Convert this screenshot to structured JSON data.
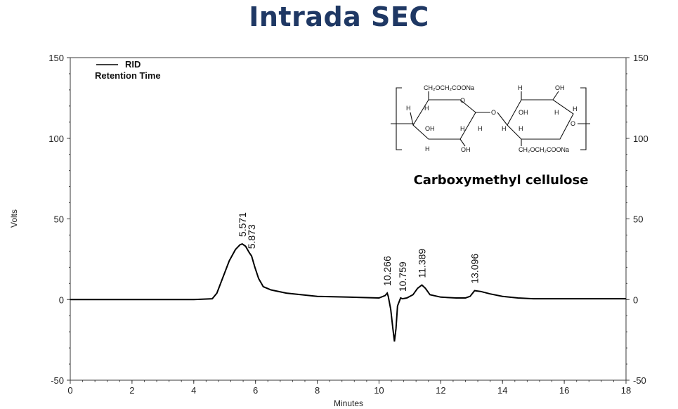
{
  "title": "Intrada SEC",
  "chart_data": {
    "type": "line",
    "title": "Intrada SEC",
    "xlabel": "Minutes",
    "ylabel": "Volts",
    "xlim": [
      0,
      18
    ],
    "ylim": [
      -50,
      150
    ],
    "x_ticks": [
      "0",
      "2",
      "4",
      "6",
      "8",
      "10",
      "12",
      "14",
      "16",
      "18"
    ],
    "y_ticks": [
      "150",
      "100",
      "50",
      "0",
      "-50"
    ],
    "y2_ticks": [
      "150",
      "100",
      "50",
      "0",
      "-50"
    ],
    "legend": [
      "RID",
      "Retention Time"
    ],
    "series": [
      {
        "name": "RID",
        "x": [
          0,
          2,
          4,
          4.6,
          4.75,
          4.95,
          5.15,
          5.35,
          5.5,
          5.571,
          5.68,
          5.8,
          5.873,
          5.98,
          6.1,
          6.25,
          6.5,
          7,
          8,
          9,
          10,
          10.2,
          10.266,
          10.3,
          10.38,
          10.45,
          10.5,
          10.55,
          10.6,
          10.7,
          10.759,
          10.9,
          11.1,
          11.25,
          11.389,
          11.5,
          11.65,
          12,
          12.5,
          12.8,
          12.95,
          13.096,
          13.3,
          13.6,
          14,
          14.5,
          15,
          16,
          17,
          18
        ],
        "y": [
          0,
          0,
          0,
          0.5,
          4,
          14,
          24,
          31,
          34,
          34.5,
          33,
          29,
          27,
          20,
          13,
          8,
          6,
          4,
          2,
          1.5,
          1,
          2.5,
          4,
          2,
          -6,
          -18,
          -26,
          -18,
          -4,
          1,
          0.5,
          1,
          3,
          7,
          9,
          7,
          3,
          1.5,
          1,
          1,
          2,
          5.5,
          5,
          3.5,
          2,
          1,
          0.5,
          0.5,
          0.5,
          0.5
        ]
      }
    ],
    "peaks": [
      {
        "label": "5.571",
        "x": 5.571,
        "y": 34.5
      },
      {
        "label": "5.873",
        "x": 5.873,
        "y": 27
      },
      {
        "label": "10.266",
        "x": 10.266,
        "y": 4
      },
      {
        "label": "10.759",
        "x": 10.759,
        "y": 0.5
      },
      {
        "label": "11.389",
        "x": 11.389,
        "y": 9
      },
      {
        "label": "13.096",
        "x": 13.096,
        "y": 5.5
      }
    ],
    "grid": false
  },
  "molecule": {
    "caption": "Carboxymethyl cellulose",
    "labels": {
      "sub_top": "CH₂OCH₂COONa",
      "sub_bottom": "CH₂OCH₂COONa",
      "h": "H",
      "oh": "OH",
      "o": "O"
    }
  },
  "colors": {
    "title": "#1f3864",
    "line": "#000000",
    "axis": "#3a3a3a"
  }
}
